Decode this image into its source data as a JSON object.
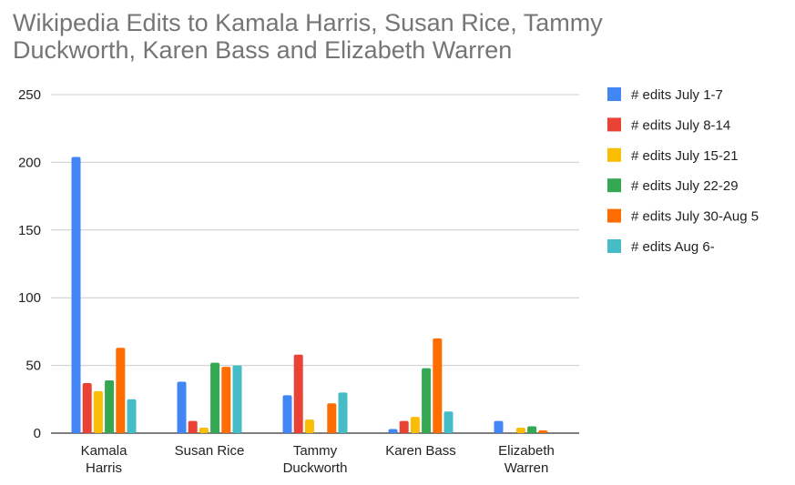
{
  "chart_data": {
    "type": "bar",
    "title_lines": [
      "Wikipedia Edits to Kamala Harris, Susan Rice, Tammy",
      "Duckworth, Karen Bass and Elizabeth Warren"
    ],
    "categories": [
      [
        "Kamala",
        "Harris"
      ],
      [
        "Susan Rice"
      ],
      [
        "Tammy",
        "Duckworth"
      ],
      [
        "Karen Bass"
      ],
      [
        "Elizabeth",
        "Warren"
      ]
    ],
    "series": [
      {
        "name": "# edits July 1-7",
        "color": "#4285F4",
        "values": [
          204,
          38,
          28,
          3,
          9
        ]
      },
      {
        "name": "# edits July 8-14",
        "color": "#EA4335",
        "values": [
          37,
          9,
          58,
          9,
          0
        ]
      },
      {
        "name": "# edits July 15-21",
        "color": "#FBBC04",
        "values": [
          31,
          4,
          10,
          12,
          4
        ]
      },
      {
        "name": "# edits July 22-29",
        "color": "#34A853",
        "values": [
          39,
          52,
          0,
          48,
          5
        ]
      },
      {
        "name": "# edits July 30-Aug 5",
        "color": "#FF6D01",
        "values": [
          63,
          49,
          22,
          70,
          2
        ]
      },
      {
        "name": "# edits Aug 6-",
        "color": "#46BDC6",
        "values": [
          25,
          50,
          30,
          16,
          0
        ]
      }
    ],
    "ylim": [
      0,
      250
    ],
    "yticks": [
      0,
      50,
      100,
      150,
      200,
      250
    ],
    "grid": true,
    "legend_position": "right"
  }
}
